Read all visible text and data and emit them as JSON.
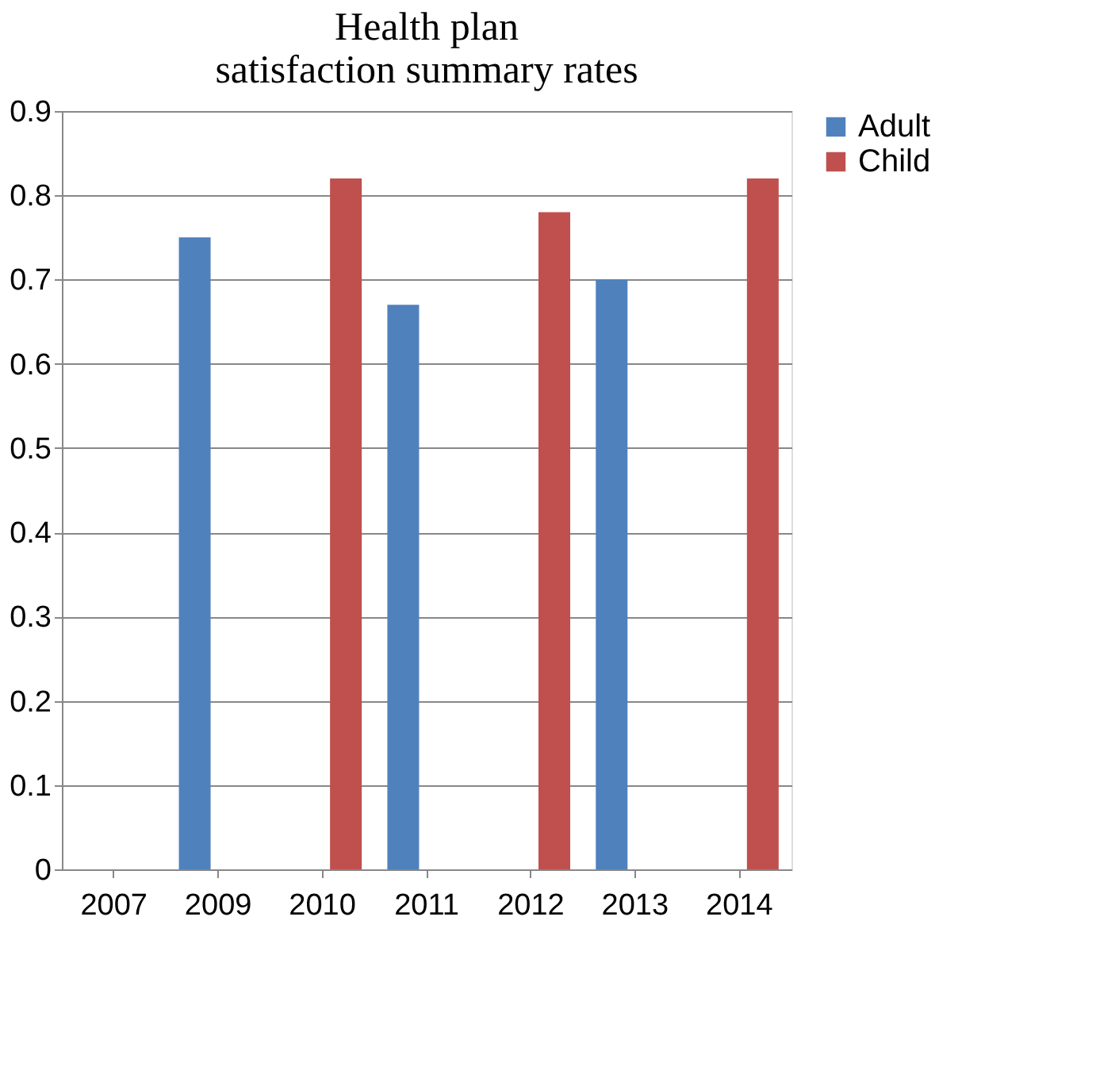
{
  "chart_data": {
    "type": "bar",
    "title": "Health plan\nsatisfaction summary rates",
    "categories": [
      "2007",
      "2009",
      "2010",
      "2011",
      "2012",
      "2013",
      "2014"
    ],
    "series": [
      {
        "name": "Adult",
        "color": "#4f81bd",
        "values": [
          null,
          0.75,
          null,
          0.67,
          null,
          0.7,
          null
        ]
      },
      {
        "name": "Child",
        "color": "#c0504d",
        "values": [
          null,
          null,
          0.82,
          null,
          0.78,
          null,
          0.82
        ]
      }
    ],
    "ylim": [
      0,
      0.9
    ],
    "yticks": [
      0,
      0.1,
      0.2,
      0.3,
      0.4,
      0.5,
      0.6,
      0.7,
      0.8,
      0.9
    ],
    "grid": "y",
    "legend": "right"
  }
}
